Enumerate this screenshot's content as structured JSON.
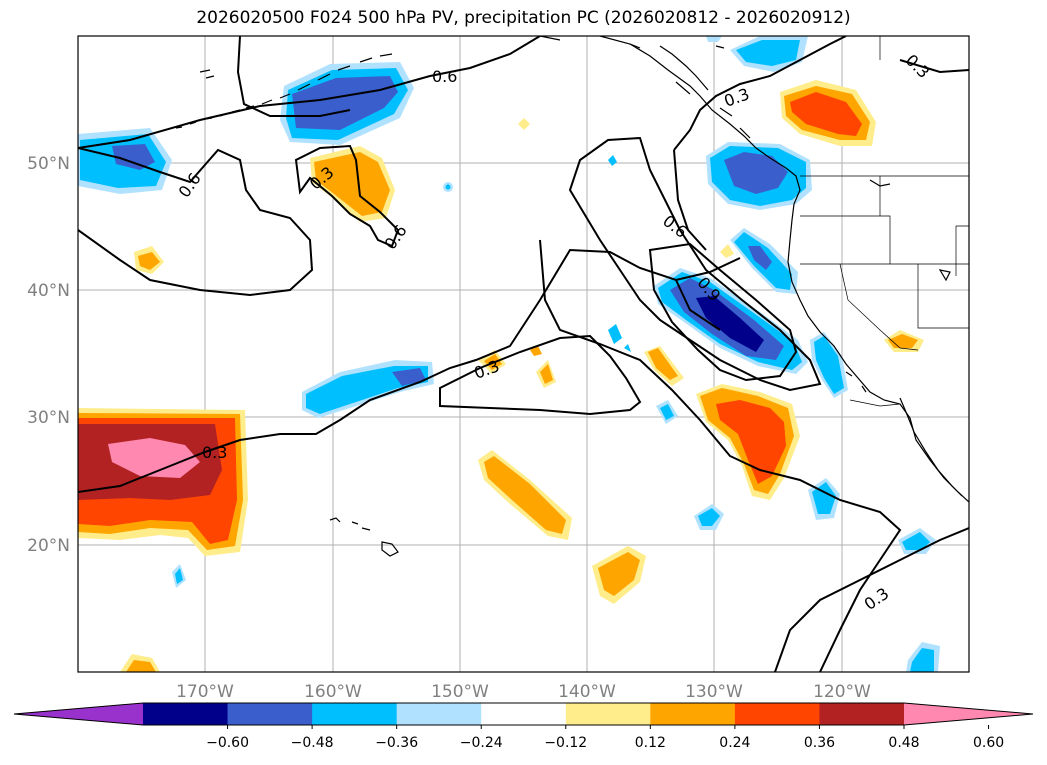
{
  "title": "2026020500 F024 500 hPa PV, precipitation PC (2026020812 - 2026020912)",
  "map": {
    "extent": {
      "lon": [
        -180,
        -110
      ],
      "lat": [
        10,
        60
      ]
    },
    "lon_ticks": [
      "170°W",
      "160°W",
      "150°W",
      "140°W",
      "130°W",
      "120°W"
    ],
    "lat_ticks": [
      "20°N",
      "30°N",
      "40°N",
      "50°N"
    ],
    "contour_labels": [
      "0.6",
      "0.6",
      "0.3",
      "0.6",
      "0.3",
      "0.3",
      "0.6",
      "0.9",
      "0.3",
      "0.3",
      "0.3"
    ]
  },
  "colorbar": {
    "ticks": [
      "−0.60",
      "−0.48",
      "−0.36",
      "−0.24",
      "−0.12",
      "0.12",
      "0.24",
      "0.36",
      "0.48",
      "0.60"
    ],
    "colors": [
      "#9932cc",
      "#00008b",
      "#3a5fcd",
      "#00bfff",
      "#b0e2ff",
      "#ffffff",
      "#ffec8b",
      "#ffa500",
      "#ff4500",
      "#b22222",
      "#ff88b0"
    ]
  },
  "palette": {
    "blue_dark": "#00008b",
    "blue": "#3a5fcd",
    "sky": "#00bfff",
    "sky_light": "#b0e2ff",
    "yellow": "#ffec8b",
    "orange": "#ffa500",
    "orange_red": "#ff4500",
    "firebrick": "#b22222",
    "pink": "#ff88b0"
  }
}
